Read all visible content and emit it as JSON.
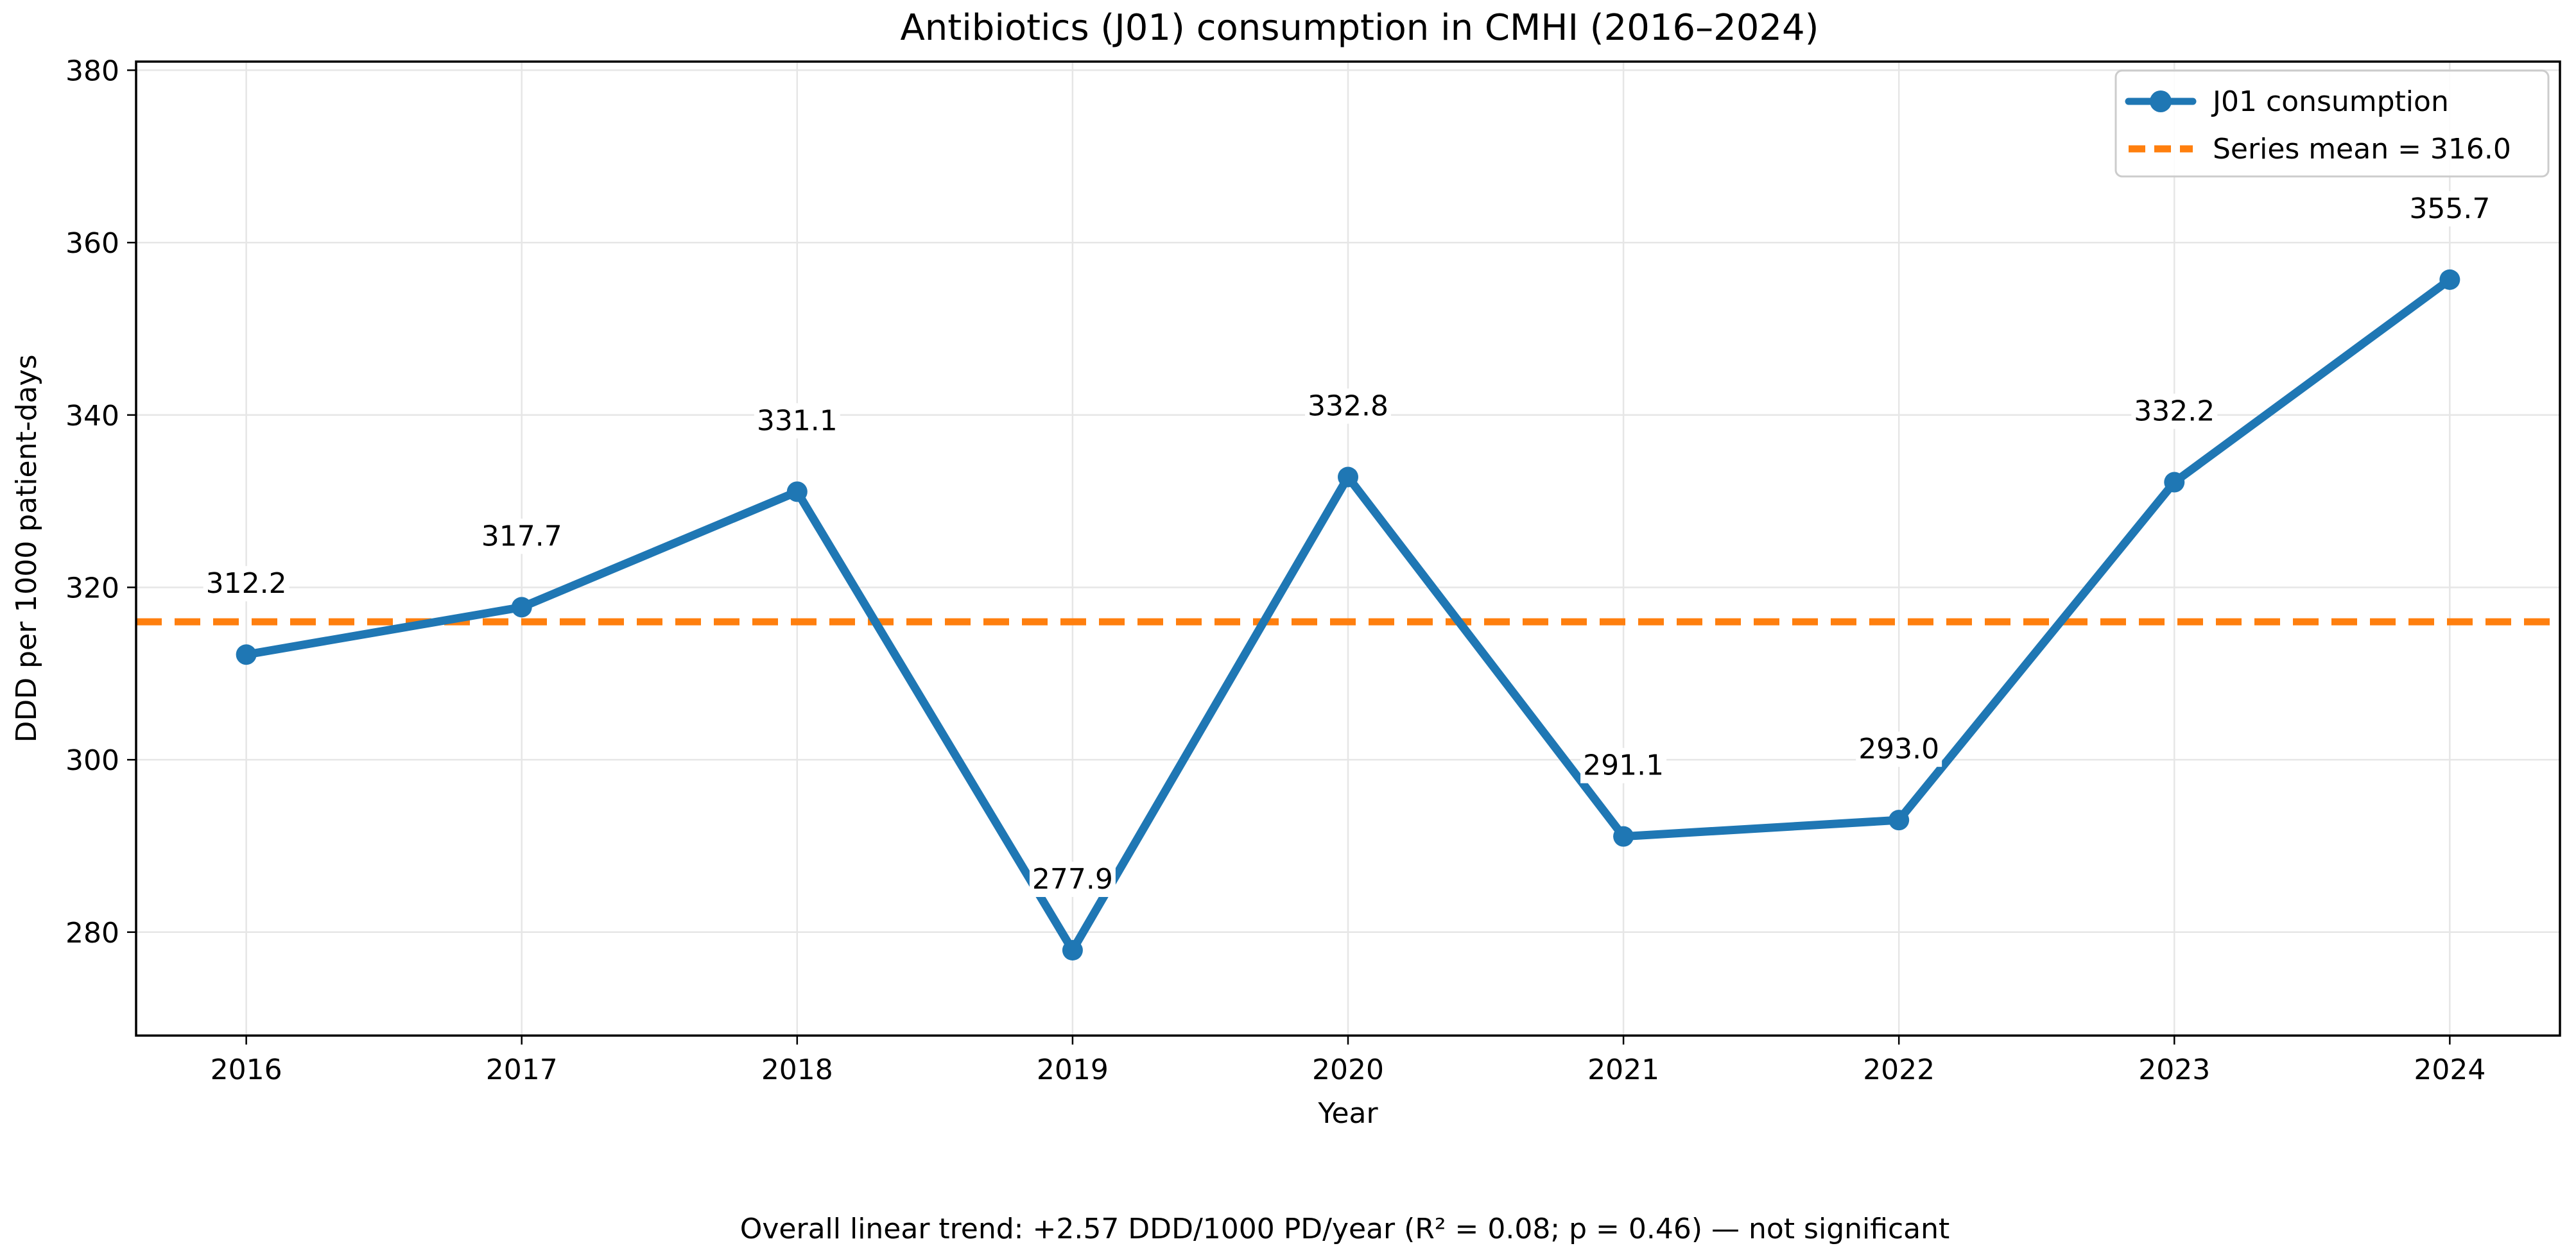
{
  "chart_data": {
    "type": "line",
    "title": "Antibiotics (J01) consumption in CMHI (2016–2024)",
    "xlabel": "Year",
    "ylabel": "DDD per 1000 patient-days",
    "x": [
      2016,
      2017,
      2018,
      2019,
      2020,
      2021,
      2022,
      2023,
      2024
    ],
    "xticks": [
      "2016",
      "2017",
      "2018",
      "2019",
      "2020",
      "2021",
      "2022",
      "2023",
      "2024"
    ],
    "yticks": [
      280,
      300,
      320,
      340,
      360,
      380
    ],
    "ylim": [
      268,
      381
    ],
    "xlim": [
      2015.6,
      2024.4
    ],
    "grid": true,
    "legend_position": "top-right",
    "series": [
      {
        "name": "J01 consumption",
        "values": [
          312.2,
          317.7,
          331.1,
          277.9,
          332.8,
          291.1,
          293.0,
          332.2,
          355.7
        ],
        "labels": [
          "312.2",
          "317.7",
          "331.1",
          "277.9",
          "332.8",
          "291.1",
          "293.0",
          "332.2",
          "355.7"
        ],
        "color": "#1f77b4",
        "style": "solid-with-markers"
      }
    ],
    "reference_lines": [
      {
        "name": "Series mean = 316.0",
        "value": 316.0,
        "color": "#ff7f0e",
        "style": "dashed"
      }
    ],
    "footnote": "Overall linear trend: +2.57 DDD/1000 PD/year (R² = 0.08; p = 0.46) — not significant"
  }
}
